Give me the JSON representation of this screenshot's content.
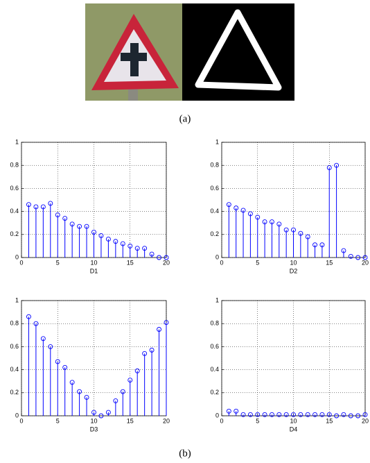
{
  "captions": [
    "(a)",
    "(b)"
  ],
  "chart_data": [
    {
      "type": "stem",
      "xlabel": "D1",
      "x": [
        1,
        2,
        3,
        4,
        5,
        6,
        7,
        8,
        9,
        10,
        11,
        12,
        13,
        14,
        15,
        16,
        17,
        18,
        19,
        20
      ],
      "values": [
        0.46,
        0.44,
        0.44,
        0.47,
        0.37,
        0.34,
        0.29,
        0.27,
        0.27,
        0.22,
        0.19,
        0.16,
        0.14,
        0.12,
        0.1,
        0.08,
        0.08,
        0.03,
        0,
        0
      ],
      "xlim": [
        0,
        20
      ],
      "ylim": [
        0,
        1
      ],
      "xticks": [
        0,
        5,
        10,
        15,
        20
      ],
      "yticks": [
        0,
        0.2,
        0.4,
        0.6,
        0.8,
        1
      ],
      "grid": true,
      "color": "#0000ff"
    },
    {
      "type": "stem",
      "xlabel": "D2",
      "x": [
        1,
        2,
        3,
        4,
        5,
        6,
        7,
        8,
        9,
        10,
        11,
        12,
        13,
        14,
        15,
        16,
        17,
        18,
        19,
        20
      ],
      "values": [
        0.46,
        0.43,
        0.41,
        0.38,
        0.35,
        0.31,
        0.31,
        0.29,
        0.24,
        0.24,
        0.21,
        0.18,
        0.11,
        0.11,
        0.78,
        0.8,
        0.06,
        0.01,
        0,
        0
      ],
      "xlim": [
        0,
        20
      ],
      "ylim": [
        0,
        1
      ],
      "xticks": [
        0,
        5,
        10,
        15,
        20
      ],
      "yticks": [
        0,
        0.2,
        0.4,
        0.6,
        0.8,
        1
      ],
      "grid": true,
      "color": "#0000ff"
    },
    {
      "type": "stem",
      "xlabel": "D3",
      "x": [
        1,
        2,
        3,
        4,
        5,
        6,
        7,
        8,
        9,
        10,
        11,
        12,
        13,
        14,
        15,
        16,
        17,
        18,
        19,
        20
      ],
      "values": [
        0.86,
        0.8,
        0.67,
        0.6,
        0.47,
        0.42,
        0.29,
        0.21,
        0.16,
        0.03,
        0,
        0.03,
        0.13,
        0.21,
        0.31,
        0.39,
        0.54,
        0.57,
        0.75,
        0.81
      ],
      "xlim": [
        0,
        20
      ],
      "ylim": [
        0,
        1
      ],
      "xticks": [
        0,
        5,
        10,
        15,
        20
      ],
      "yticks": [
        0,
        0.2,
        0.4,
        0.6,
        0.8,
        1
      ],
      "grid": true,
      "color": "#0000ff"
    },
    {
      "type": "stem",
      "xlabel": "D4",
      "x": [
        1,
        2,
        3,
        4,
        5,
        6,
        7,
        8,
        9,
        10,
        11,
        12,
        13,
        14,
        15,
        16,
        17,
        18,
        19,
        20
      ],
      "values": [
        0.04,
        0.04,
        0.01,
        0.01,
        0.01,
        0.01,
        0.01,
        0.01,
        0.01,
        0.01,
        0.01,
        0.01,
        0.01,
        0.01,
        0.01,
        0,
        0.01,
        0,
        0,
        0.01
      ],
      "xlim": [
        0,
        20
      ],
      "ylim": [
        0,
        1
      ],
      "xticks": [
        0,
        5,
        10,
        15,
        20
      ],
      "yticks": [
        0,
        0.2,
        0.4,
        0.6,
        0.8,
        1
      ],
      "grid": true,
      "color": "#0000ff"
    }
  ]
}
